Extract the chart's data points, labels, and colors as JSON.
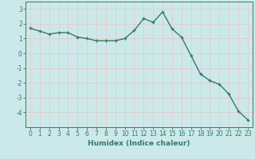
{
  "x": [
    0,
    1,
    2,
    3,
    4,
    5,
    6,
    7,
    8,
    9,
    10,
    11,
    12,
    13,
    14,
    15,
    16,
    17,
    18,
    19,
    20,
    21,
    22,
    23
  ],
  "y": [
    1.7,
    1.5,
    1.3,
    1.4,
    1.4,
    1.1,
    1.0,
    0.85,
    0.85,
    0.85,
    1.0,
    1.55,
    2.35,
    2.1,
    2.8,
    1.65,
    1.1,
    -0.15,
    -1.4,
    -1.85,
    -2.1,
    -2.75,
    -3.9,
    -4.5
  ],
  "line_color": "#2e7d6e",
  "marker": "+",
  "marker_size": 3.5,
  "linewidth": 1.0,
  "xlabel": "Humidex (Indice chaleur)",
  "xlim": [
    -0.5,
    23.5
  ],
  "ylim": [
    -5,
    3.5
  ],
  "yticks": [
    -4,
    -3,
    -2,
    -1,
    0,
    1,
    2,
    3
  ],
  "xticks": [
    0,
    1,
    2,
    3,
    4,
    5,
    6,
    7,
    8,
    9,
    10,
    11,
    12,
    13,
    14,
    15,
    16,
    17,
    18,
    19,
    20,
    21,
    22,
    23
  ],
  "bg_color": "#cce9e9",
  "grid_color": "#e8c8c8",
  "spine_color": "#2e7d6e",
  "label_color": "#2e7d6e",
  "xlabel_fontsize": 6.5,
  "tick_fontsize": 5.5
}
